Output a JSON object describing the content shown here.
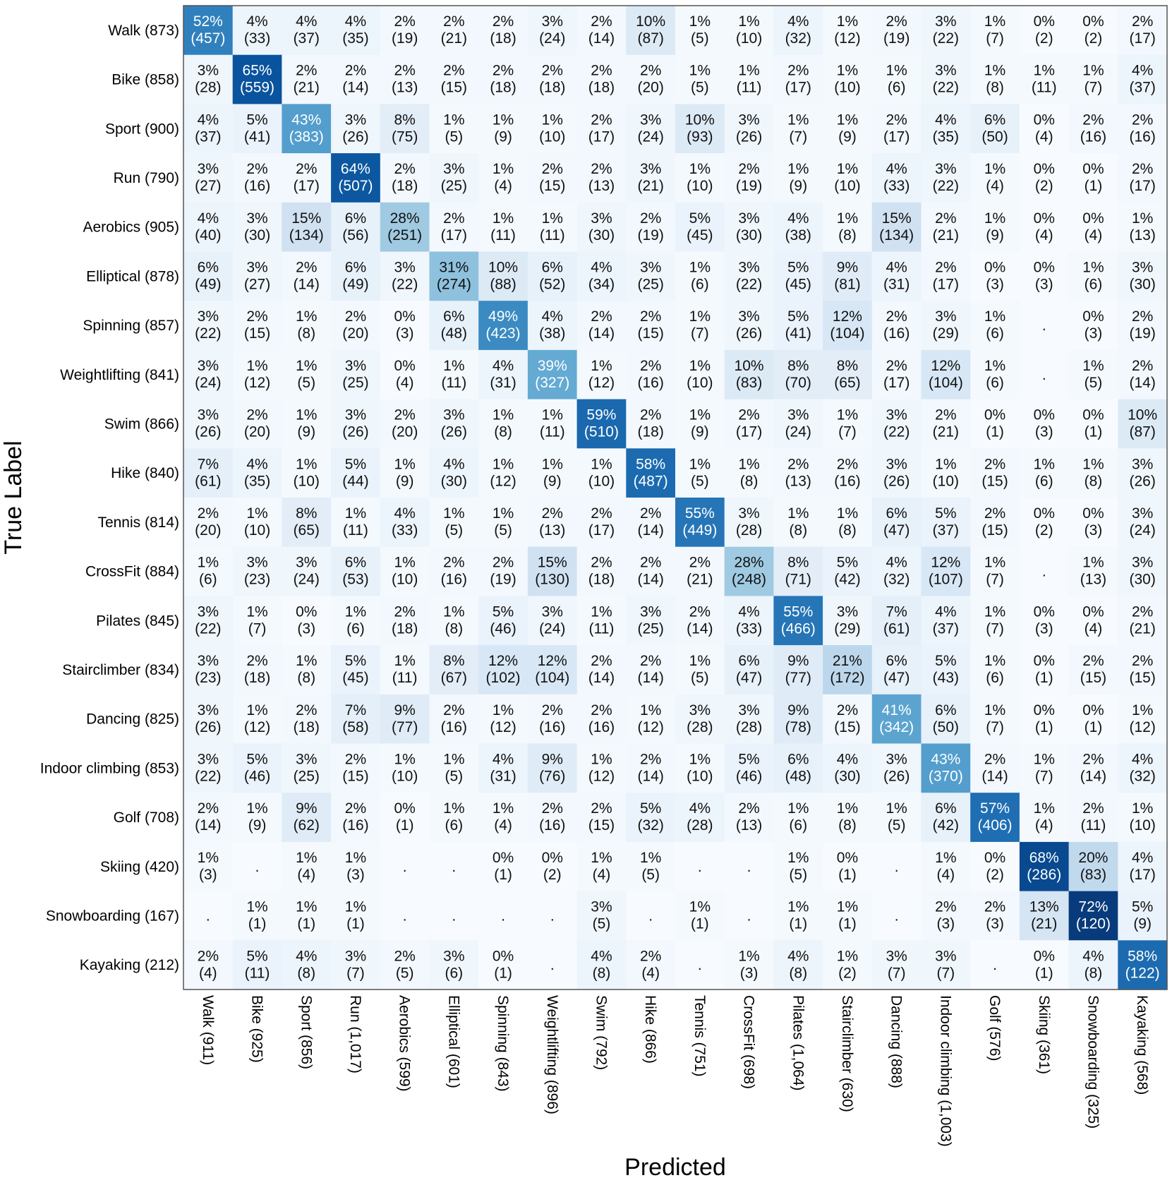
{
  "chart_data": {
    "type": "heatmap",
    "title": "",
    "xlabel": "Predicted",
    "ylabel": "True Label",
    "colormap": "Blues",
    "colors": {
      "low": "#f7fbff",
      "mid": "#6baed6",
      "high": "#08306b",
      "frame": "#555555"
    },
    "grid": false,
    "empty_marker": ".",
    "row_labels": [
      "Walk (873)",
      "Bike (858)",
      "Sport (900)",
      "Run (790)",
      "Aerobics (905)",
      "Elliptical (878)",
      "Spinning (857)",
      "Weightlifting (841)",
      "Swim (866)",
      "Hike (840)",
      "Tennis (814)",
      "CrossFit (884)",
      "Pilates (845)",
      "Stairclimber (834)",
      "Dancing (825)",
      "Indoor climbing (853)",
      "Golf (708)",
      "Skiing (420)",
      "Snowboarding (167)",
      "Kayaking (212)"
    ],
    "col_labels": [
      "Walk (911)",
      "Bike (925)",
      "Sport (856)",
      "Run (1,017)",
      "Aerobics (599)",
      "Elliptical (601)",
      "Spinning (843)",
      "Weightlifting (896)",
      "Swim (792)",
      "Hike (866)",
      "Tennis (751)",
      "CrossFit (698)",
      "Pilates (1,064)",
      "Stairclimber (630)",
      "Dancing (888)",
      "Indoor climbing (1,003)",
      "Golf (576)",
      "Skiing (361)",
      "Snowboarding (325)",
      "Kayaking (568)"
    ],
    "percent": [
      [
        52,
        4,
        4,
        4,
        2,
        2,
        2,
        3,
        2,
        10,
        1,
        1,
        4,
        1,
        2,
        3,
        1,
        0,
        0,
        2
      ],
      [
        3,
        65,
        2,
        2,
        2,
        2,
        2,
        2,
        2,
        2,
        1,
        1,
        2,
        1,
        1,
        3,
        1,
        1,
        1,
        4
      ],
      [
        4,
        5,
        43,
        3,
        8,
        1,
        1,
        1,
        2,
        3,
        10,
        3,
        1,
        1,
        2,
        4,
        6,
        0,
        2,
        2
      ],
      [
        3,
        2,
        2,
        64,
        2,
        3,
        1,
        2,
        2,
        3,
        1,
        2,
        1,
        1,
        4,
        3,
        1,
        0,
        0,
        2
      ],
      [
        4,
        3,
        15,
        6,
        28,
        2,
        1,
        1,
        3,
        2,
        5,
        3,
        4,
        1,
        15,
        2,
        1,
        0,
        0,
        1
      ],
      [
        6,
        3,
        2,
        6,
        3,
        31,
        10,
        6,
        4,
        3,
        1,
        3,
        5,
        9,
        4,
        2,
        0,
        0,
        1,
        3
      ],
      [
        3,
        2,
        1,
        2,
        0,
        6,
        49,
        4,
        2,
        2,
        1,
        3,
        5,
        12,
        2,
        3,
        1,
        null,
        0,
        2
      ],
      [
        3,
        1,
        1,
        3,
        0,
        1,
        4,
        39,
        1,
        2,
        1,
        10,
        8,
        8,
        2,
        12,
        1,
        null,
        1,
        2
      ],
      [
        3,
        2,
        1,
        3,
        2,
        3,
        1,
        1,
        59,
        2,
        1,
        2,
        3,
        1,
        3,
        2,
        0,
        0,
        0,
        10
      ],
      [
        7,
        4,
        1,
        5,
        1,
        4,
        1,
        1,
        1,
        58,
        1,
        1,
        2,
        2,
        3,
        1,
        2,
        1,
        1,
        3
      ],
      [
        2,
        1,
        8,
        1,
        4,
        1,
        1,
        2,
        2,
        2,
        55,
        3,
        1,
        1,
        6,
        5,
        2,
        0,
        0,
        3
      ],
      [
        1,
        3,
        3,
        6,
        1,
        2,
        2,
        15,
        2,
        2,
        2,
        28,
        8,
        5,
        4,
        12,
        1,
        null,
        1,
        3
      ],
      [
        3,
        1,
        0,
        1,
        2,
        1,
        5,
        3,
        1,
        3,
        2,
        4,
        55,
        3,
        7,
        4,
        1,
        0,
        0,
        2
      ],
      [
        3,
        2,
        1,
        5,
        1,
        8,
        12,
        12,
        2,
        2,
        1,
        6,
        9,
        21,
        6,
        5,
        1,
        0,
        2,
        2
      ],
      [
        3,
        1,
        2,
        7,
        9,
        2,
        1,
        2,
        2,
        1,
        3,
        3,
        9,
        2,
        41,
        6,
        1,
        0,
        0,
        1
      ],
      [
        3,
        5,
        3,
        2,
        1,
        1,
        4,
        9,
        1,
        2,
        1,
        5,
        6,
        4,
        3,
        43,
        2,
        1,
        2,
        4
      ],
      [
        2,
        1,
        9,
        2,
        0,
        1,
        1,
        2,
        2,
        5,
        4,
        2,
        1,
        1,
        1,
        6,
        57,
        1,
        2,
        1
      ],
      [
        1,
        null,
        1,
        1,
        null,
        null,
        0,
        0,
        1,
        1,
        null,
        null,
        1,
        0,
        null,
        1,
        0,
        68,
        20,
        4
      ],
      [
        null,
        1,
        1,
        1,
        null,
        null,
        null,
        null,
        3,
        null,
        1,
        null,
        1,
        1,
        null,
        2,
        2,
        13,
        72,
        5
      ],
      [
        2,
        5,
        4,
        3,
        2,
        3,
        0,
        null,
        4,
        2,
        null,
        1,
        4,
        1,
        3,
        3,
        null,
        0,
        4,
        58
      ]
    ],
    "counts": [
      [
        457,
        33,
        37,
        35,
        19,
        21,
        18,
        24,
        14,
        87,
        5,
        10,
        32,
        12,
        19,
        22,
        7,
        2,
        2,
        17
      ],
      [
        28,
        559,
        21,
        14,
        13,
        15,
        18,
        18,
        18,
        20,
        5,
        11,
        17,
        10,
        6,
        22,
        8,
        11,
        7,
        37
      ],
      [
        37,
        41,
        383,
        26,
        75,
        5,
        9,
        10,
        17,
        24,
        93,
        26,
        7,
        9,
        17,
        35,
        50,
        4,
        16,
        16
      ],
      [
        27,
        16,
        17,
        507,
        18,
        25,
        4,
        15,
        13,
        21,
        10,
        19,
        9,
        10,
        33,
        22,
        4,
        2,
        1,
        17
      ],
      [
        40,
        30,
        134,
        56,
        251,
        17,
        11,
        11,
        30,
        19,
        45,
        30,
        38,
        8,
        134,
        21,
        9,
        4,
        4,
        13
      ],
      [
        49,
        27,
        14,
        49,
        22,
        274,
        88,
        52,
        34,
        25,
        6,
        22,
        45,
        81,
        31,
        17,
        3,
        3,
        6,
        30
      ],
      [
        22,
        15,
        8,
        20,
        3,
        48,
        423,
        38,
        14,
        15,
        7,
        26,
        41,
        104,
        16,
        29,
        6,
        null,
        3,
        19
      ],
      [
        24,
        12,
        5,
        25,
        4,
        11,
        31,
        327,
        12,
        16,
        10,
        83,
        70,
        65,
        17,
        104,
        6,
        null,
        5,
        14
      ],
      [
        26,
        20,
        9,
        26,
        20,
        26,
        8,
        11,
        510,
        18,
        9,
        17,
        24,
        7,
        22,
        21,
        1,
        3,
        1,
        87
      ],
      [
        61,
        35,
        10,
        44,
        9,
        30,
        12,
        9,
        10,
        487,
        5,
        8,
        13,
        16,
        26,
        10,
        15,
        6,
        8,
        26
      ],
      [
        20,
        10,
        65,
        11,
        33,
        5,
        5,
        13,
        17,
        14,
        449,
        28,
        8,
        8,
        47,
        37,
        15,
        2,
        3,
        24
      ],
      [
        6,
        23,
        24,
        53,
        10,
        16,
        19,
        130,
        18,
        14,
        21,
        248,
        71,
        42,
        32,
        107,
        7,
        null,
        13,
        30
      ],
      [
        22,
        7,
        3,
        6,
        18,
        8,
        46,
        24,
        11,
        25,
        14,
        33,
        466,
        29,
        61,
        37,
        7,
        3,
        4,
        21
      ],
      [
        23,
        18,
        8,
        45,
        11,
        67,
        102,
        104,
        14,
        14,
        5,
        47,
        77,
        172,
        47,
        43,
        6,
        1,
        15,
        15
      ],
      [
        26,
        12,
        18,
        58,
        77,
        16,
        12,
        16,
        16,
        12,
        28,
        28,
        78,
        15,
        342,
        50,
        7,
        1,
        1,
        12
      ],
      [
        22,
        46,
        25,
        15,
        10,
        5,
        31,
        76,
        12,
        14,
        10,
        46,
        48,
        30,
        26,
        370,
        14,
        7,
        14,
        32
      ],
      [
        14,
        9,
        62,
        16,
        1,
        6,
        4,
        16,
        15,
        32,
        28,
        13,
        6,
        8,
        5,
        42,
        406,
        4,
        11,
        10
      ],
      [
        3,
        null,
        4,
        3,
        null,
        null,
        1,
        2,
        4,
        5,
        null,
        null,
        5,
        1,
        null,
        4,
        2,
        286,
        83,
        17
      ],
      [
        null,
        1,
        1,
        1,
        null,
        null,
        null,
        null,
        5,
        null,
        1,
        null,
        1,
        1,
        null,
        3,
        3,
        21,
        120,
        9
      ],
      [
        4,
        11,
        8,
        7,
        5,
        6,
        1,
        null,
        8,
        4,
        null,
        3,
        8,
        2,
        7,
        7,
        null,
        1,
        8,
        122
      ]
    ]
  }
}
